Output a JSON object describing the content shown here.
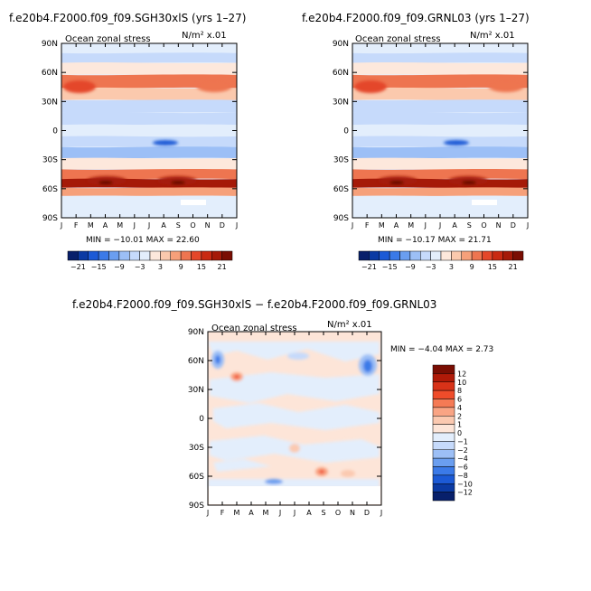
{
  "months": [
    "J",
    "F",
    "M",
    "A",
    "M",
    "J",
    "J",
    "A",
    "S",
    "O",
    "N",
    "D",
    "J"
  ],
  "lat_labels": [
    "90N",
    "60N",
    "30N",
    "0",
    "30S",
    "60S",
    "90S"
  ],
  "units": "N/m²  x.01",
  "chart_data": [
    {
      "type": "heatmap",
      "title": "f.e20b4.F2000.f09_f09.SGH30xlS (yrs 1–27)",
      "subtitle": "Ocean zonal stress",
      "units": "N/m²  x.01",
      "stats": "MIN = −10.01  MAX =  22.60",
      "min": -10.01,
      "max": 22.6,
      "colorbar": {
        "orientation": "horizontal",
        "labels": [
          "−21",
          "−15",
          "−9",
          "−3",
          "3",
          "9",
          "15",
          "21"
        ],
        "colors": [
          "#08206b",
          "#0b3aa3",
          "#1c5ad6",
          "#3b7ae8",
          "#6a9ef0",
          "#9cbff6",
          "#c6dafb",
          "#e3eefc",
          "#fde8dc",
          "#fbc9ad",
          "#f6a07a",
          "#ee7550",
          "#e4472a",
          "#c92a12",
          "#a51a08",
          "#7a0e03"
        ]
      },
      "profile": [
        {
          "lat": 85,
          "value": -1
        },
        {
          "lat": 75,
          "value": -4
        },
        {
          "lat": 65,
          "value": 0
        },
        {
          "lat": 50,
          "value": 11
        },
        {
          "lat": 38,
          "value": 3
        },
        {
          "lat": 25,
          "value": -4
        },
        {
          "lat": 12,
          "value": -6
        },
        {
          "lat": 0,
          "value": -1
        },
        {
          "lat": -12,
          "value": -4
        },
        {
          "lat": -22,
          "value": -7
        },
        {
          "lat": -35,
          "value": 2
        },
        {
          "lat": -45,
          "value": 9
        },
        {
          "lat": -55,
          "value": 19
        },
        {
          "lat": -63,
          "value": 6
        },
        {
          "lat": -72,
          "value": -1
        },
        {
          "lat": -85,
          "value": -1
        }
      ]
    },
    {
      "type": "heatmap",
      "title": "f.e20b4.F2000.f09_f09.GRNL03 (yrs 1–27)",
      "subtitle": "Ocean zonal stress",
      "units": "N/m²  x.01",
      "stats": "MIN = −10.17  MAX =  21.71",
      "min": -10.17,
      "max": 21.71,
      "colorbar": {
        "orientation": "horizontal",
        "labels": [
          "−21",
          "−15",
          "−9",
          "−3",
          "3",
          "9",
          "15",
          "21"
        ],
        "colors": [
          "#08206b",
          "#0b3aa3",
          "#1c5ad6",
          "#3b7ae8",
          "#6a9ef0",
          "#9cbff6",
          "#c6dafb",
          "#e3eefc",
          "#fde8dc",
          "#fbc9ad",
          "#f6a07a",
          "#ee7550",
          "#e4472a",
          "#c92a12",
          "#a51a08",
          "#7a0e03"
        ]
      },
      "profile": [
        {
          "lat": 85,
          "value": -1
        },
        {
          "lat": 75,
          "value": -4
        },
        {
          "lat": 65,
          "value": 0
        },
        {
          "lat": 50,
          "value": 11
        },
        {
          "lat": 38,
          "value": 3
        },
        {
          "lat": 25,
          "value": -4
        },
        {
          "lat": 12,
          "value": -6
        },
        {
          "lat": 0,
          "value": -1
        },
        {
          "lat": -12,
          "value": -4
        },
        {
          "lat": -22,
          "value": -7
        },
        {
          "lat": -35,
          "value": 2
        },
        {
          "lat": -45,
          "value": 9
        },
        {
          "lat": -55,
          "value": 19
        },
        {
          "lat": -63,
          "value": 6
        },
        {
          "lat": -72,
          "value": -1
        },
        {
          "lat": -85,
          "value": -1
        }
      ]
    },
    {
      "type": "heatmap",
      "title": "f.e20b4.F2000.f09_f09.SGH30xlS − f.e20b4.F2000.f09_f09.GRNL03",
      "subtitle": "Ocean zonal stress",
      "units": "N/m²  x.01",
      "stats": "MIN =  −4.04  MAX =   2.73",
      "min": -4.04,
      "max": 2.73,
      "colorbar": {
        "orientation": "vertical",
        "labels": [
          "12",
          "10",
          "8",
          "6",
          "4",
          "2",
          "1",
          "0",
          "−1",
          "−2",
          "−4",
          "−6",
          "−8",
          "−10",
          "−12"
        ],
        "colors": [
          "#7a0e03",
          "#b01a08",
          "#d83218",
          "#ef4c2a",
          "#f57a55",
          "#f9a484",
          "#fbc9b0",
          "#fde5d8",
          "#e3eefc",
          "#c6dafb",
          "#9cbff6",
          "#6a9ef0",
          "#3b7ae8",
          "#1c5ad6",
          "#0b3aa3",
          "#08206b"
        ]
      }
    }
  ]
}
